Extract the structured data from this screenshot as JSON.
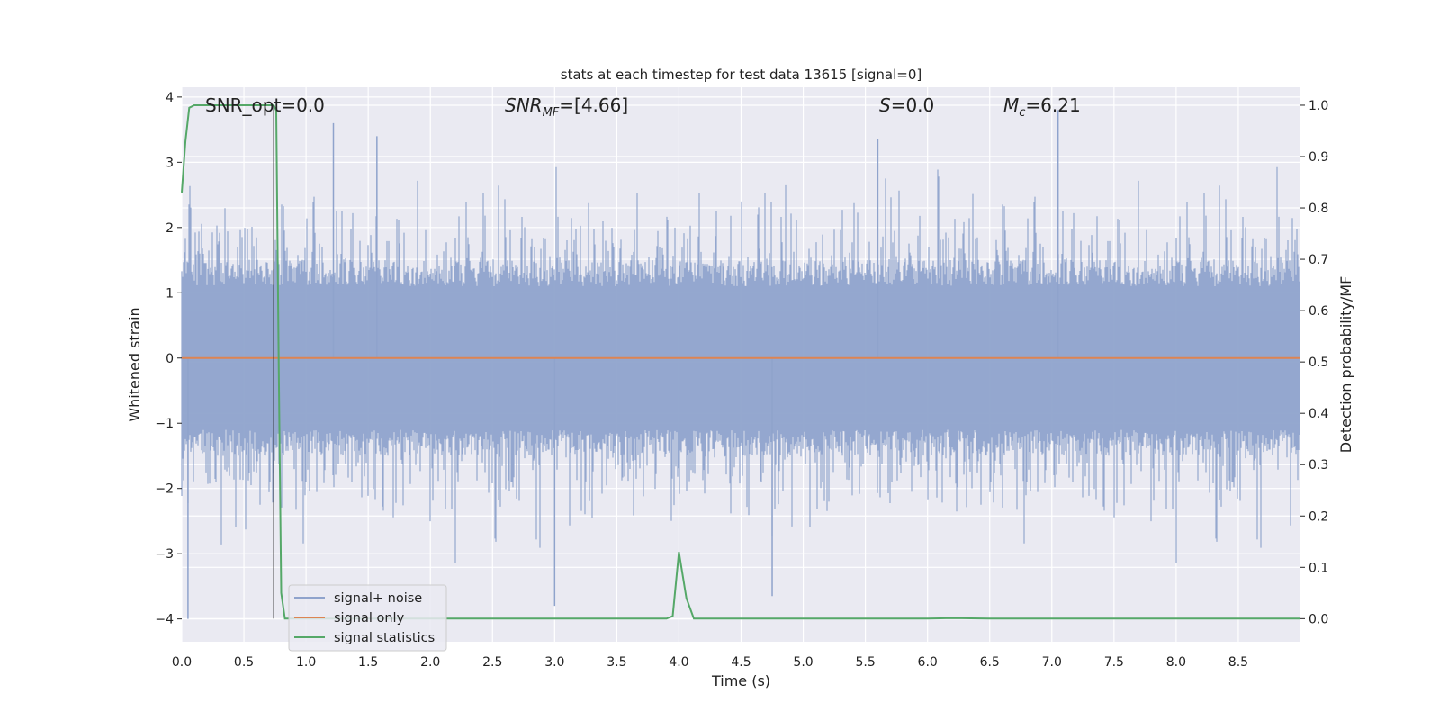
{
  "chart_data": {
    "type": "line",
    "title": "stats at each timestep for test data 13615 [signal=0]",
    "xlabel": "Time (s)",
    "ylabel_left": "Whitened strain",
    "ylabel_right": "Detection probability/MF",
    "xlim": [
      0,
      9.0
    ],
    "ylim_left": [
      -4.35,
      4.15
    ],
    "ylim_right": [
      -0.045,
      1.035
    ],
    "x_ticks": [
      "0.0",
      "0.5",
      "1.0",
      "1.5",
      "2.0",
      "2.5",
      "3.0",
      "3.5",
      "4.0",
      "4.5",
      "5.0",
      "5.5",
      "6.0",
      "6.5",
      "7.0",
      "7.5",
      "8.0",
      "8.5"
    ],
    "y_ticks_left": [
      -4,
      -3,
      -2,
      -1,
      0,
      1,
      2,
      3,
      4
    ],
    "y_ticks_right": [
      "0.0",
      "0.1",
      "0.2",
      "0.3",
      "0.4",
      "0.5",
      "0.6",
      "0.7",
      "0.8",
      "0.9",
      "1.0"
    ],
    "grid": true,
    "legend_position": "lower-left",
    "annotations": {
      "snr_opt": "SNR_opt=0.0",
      "snr_mf_main": "SNR",
      "snr_mf_sub": "MF",
      "snr_mf_tail": "=[4.66]",
      "s_main": "S",
      "s_tail": "=0.0",
      "mc_main": "M",
      "mc_sub": "c",
      "mc_tail": "=6.21"
    },
    "series": [
      {
        "name": "signal+ noise",
        "axis": "left",
        "color": "#8fa3cc",
        "envelope": "dense whitened noise, roughly symmetric about 0, peaks between about -4 and 3.8",
        "notable_peaks": [
          {
            "x": 0.05,
            "y": -4.0
          },
          {
            "x": 1.22,
            "y": 3.6
          },
          {
            "x": 1.57,
            "y": 3.4
          },
          {
            "x": 3.0,
            "y": -3.8
          },
          {
            "x": 4.75,
            "y": -3.65
          },
          {
            "x": 5.6,
            "y": 3.35
          },
          {
            "x": 7.05,
            "y": 3.8
          }
        ]
      },
      {
        "name": "signal only",
        "axis": "left",
        "color": "#dd8452",
        "x": [
          0,
          9.0
        ],
        "y": [
          0,
          0
        ]
      },
      {
        "name": "signal statistics",
        "axis": "right",
        "color": "#55a868",
        "x": [
          0,
          0.03,
          0.06,
          0.1,
          0.2,
          0.4,
          0.6,
          0.7,
          0.74,
          0.76,
          0.78,
          0.8,
          0.83,
          0.9,
          1.5,
          2.0,
          3.0,
          3.5,
          3.9,
          3.95,
          4.0,
          4.06,
          4.12,
          4.2,
          5.0,
          6.0,
          6.2,
          6.5,
          7.0,
          8.0,
          9.0
        ],
        "y": [
          0.83,
          0.93,
          0.995,
          1.0,
          1.0,
          1.0,
          1.0,
          1.0,
          1.0,
          0.99,
          0.5,
          0.05,
          0.0,
          0.0,
          0.0,
          0.0,
          0.0,
          0.0,
          0.0,
          0.005,
          0.13,
          0.04,
          0.0,
          0.0,
          0.0,
          0.0,
          0.001,
          0.0,
          0.0,
          0.0,
          0.0
        ]
      },
      {
        "name": "",
        "axis": "right",
        "color": "#222222",
        "x": [
          0.74,
          0.74
        ],
        "y": [
          0.0,
          1.0
        ]
      }
    ]
  },
  "legend": {
    "items": [
      {
        "label": "signal+ noise",
        "color": "#8fa3cc"
      },
      {
        "label": "signal only",
        "color": "#dd8452"
      },
      {
        "label": "signal statistics",
        "color": "#55a868"
      }
    ]
  },
  "colors": {
    "axes_background": "#eaeaf2",
    "grid": "#ffffff",
    "text": "#222222"
  }
}
